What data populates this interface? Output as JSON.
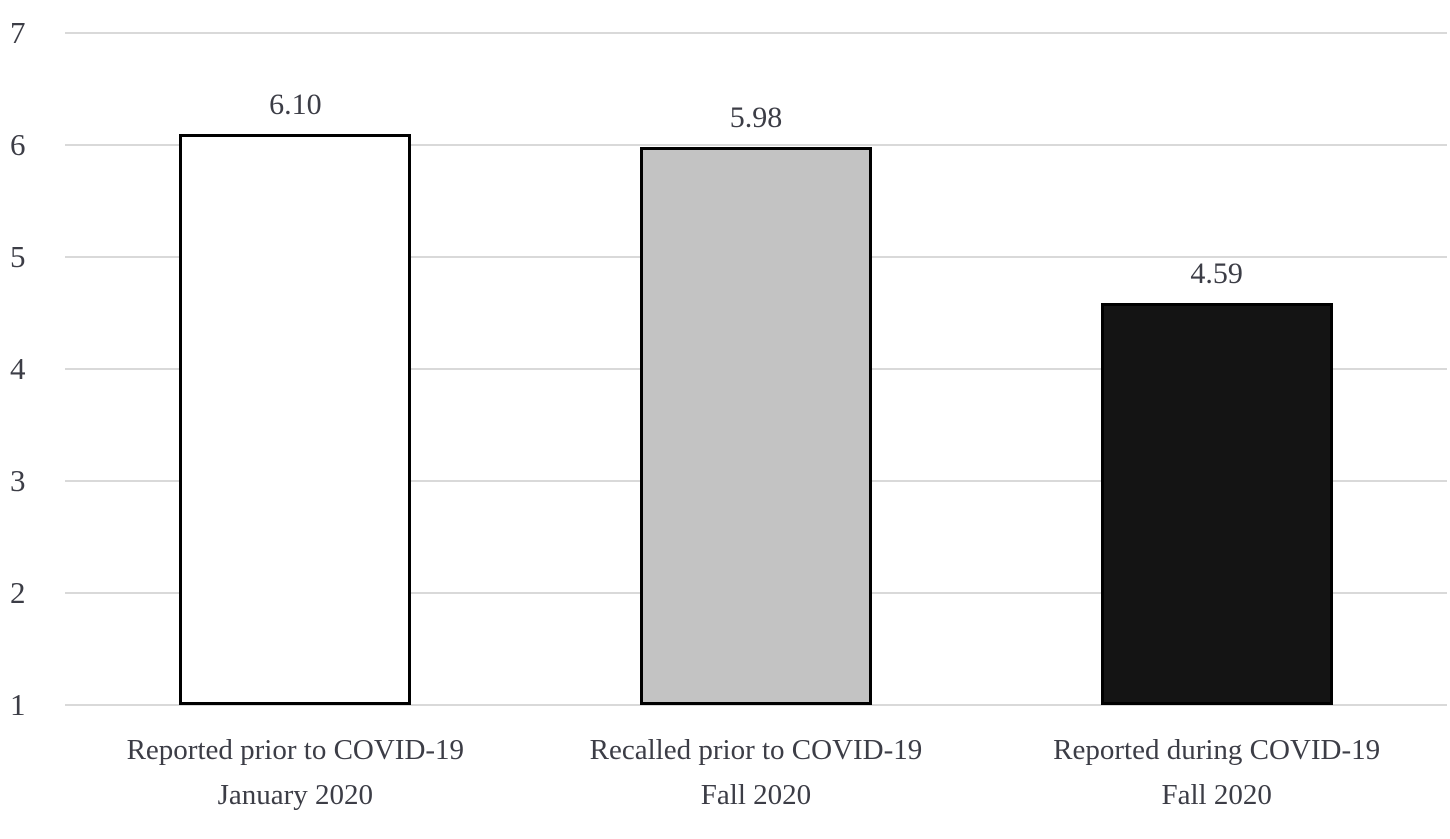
{
  "chart_data": {
    "type": "bar",
    "title": "",
    "xlabel": "",
    "ylabel": "",
    "categories": [
      {
        "line1": "Reported prior to COVID-19",
        "line2": "January 2020"
      },
      {
        "line1": "Recalled prior to COVID-19",
        "line2": "Fall 2020"
      },
      {
        "line1": "Reported during COVID-19",
        "line2": "Fall 2020"
      }
    ],
    "values": [
      6.1,
      5.98,
      4.59
    ],
    "value_labels": [
      "6.10",
      "5.98",
      "4.59"
    ],
    "ylim": [
      1,
      7
    ],
    "ytick_step": 1,
    "ytick_labels": [
      "1",
      "2",
      "3",
      "4",
      "5",
      "6",
      "7"
    ],
    "grid": "horizontal",
    "legend": "none",
    "colors": {
      "bar_fills": [
        "#ffffff",
        "#c3c3c3",
        "#141414"
      ],
      "bar_border": "#000000",
      "gridline": "#d9d9d9",
      "text": "#3c3d46",
      "background": "#ffffff"
    }
  }
}
